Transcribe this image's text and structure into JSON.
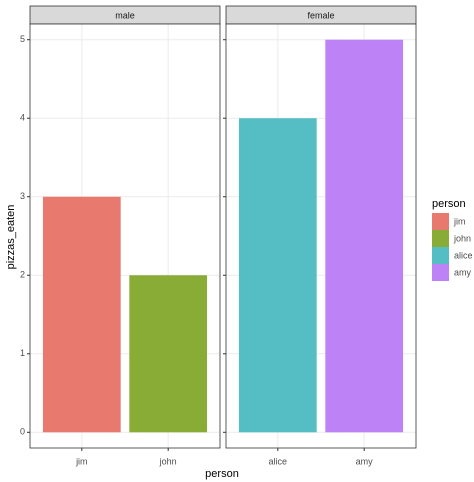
{
  "chart_data": [
    {
      "type": "bar",
      "title": "male",
      "categories": [
        "jim",
        "john"
      ],
      "values": [
        3,
        2
      ],
      "colors": [
        "#e8796f",
        "#89ac36"
      ],
      "ylim": [
        -0.2,
        5.2
      ],
      "yticks": [
        0,
        1,
        2,
        3,
        4,
        5
      ],
      "grid": true
    },
    {
      "type": "bar",
      "title": "female",
      "categories": [
        "alice",
        "amy"
      ],
      "values": [
        4,
        5
      ],
      "colors": [
        "#55bdc4",
        "#bd83f6"
      ],
      "ylim": [
        -0.2,
        5.2
      ],
      "yticks": [
        0,
        1,
        2,
        3,
        4,
        5
      ],
      "grid": true
    }
  ],
  "x_label": "person",
  "y_label": "pizzas_eaten",
  "legend": {
    "title": "person",
    "items": [
      {
        "name": "jim",
        "color": "#e8796f"
      },
      {
        "name": "john",
        "color": "#89ac36"
      },
      {
        "name": "alice",
        "color": "#55bdc4"
      },
      {
        "name": "amy",
        "color": "#bd83f6"
      }
    ]
  }
}
